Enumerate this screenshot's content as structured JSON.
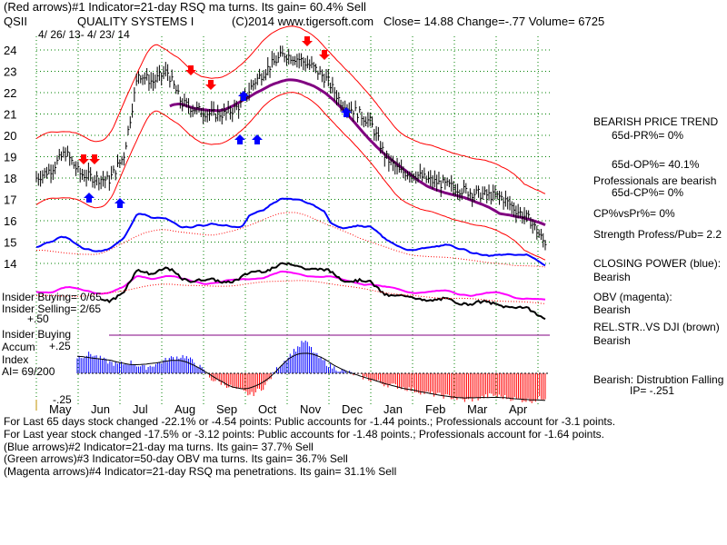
{
  "header": {
    "line1": "(Red arrows)#1 Indicator=21-day RSQ ma turns.  Its gain= 60.4% Sell",
    "ticker": "QSII",
    "company": "QUALITY SYSTEMS I",
    "copyright": "(C)2014 www.tigersoft.com",
    "quote": "Close=  14.88  Change=-.77 Volume= 6725",
    "date_range": "4/ 26/ 13-  4/ 23/ 14"
  },
  "right_panel": {
    "l1": "BEARISH PRICE TREND",
    "l2": "65d-PR%= 0%",
    "l3": "65d-OP%= 40.1%",
    "l4": "Professionals are bearish",
    "l5": "65d-CP%= 0%",
    "l6": "CP%vsPr%=  0%",
    "l7": "Strength Profess/Pub= 2.2",
    "l8": "CLOSING POWER (blue):",
    "l9": "Bearish",
    "l10": "OBV (magenta):",
    "l11": "Bearish",
    "l12": "REL.STR..VS DJI (brown)",
    "l13": "Bearish",
    "l14": "Bearish:  Distrubtion Falling",
    "l15": "IP= -.251"
  },
  "left_panel": {
    "insider_buying": "Insider Buying= 0/65",
    "insider_selling": "Insider Selling= 2/65",
    "plus50": "+.50",
    "insider_buying2": "Insider Buying",
    "accum": "Accum",
    "plus25": "+.25",
    "index": "Index",
    "ai": "AI= 69/200",
    "minus25": "-.25"
  },
  "footer": {
    "f1": "For Last 65 days stock changed -22.1% or -4.54 points:  Public accounts for -1.44 points.;  Professionals account for -3.1 points.",
    "f2": "For Last year stock changed -17.5% or -3.12 points:  Public accounts for -1.48 points.;  Professionals account for -1.64 points.",
    "f3": "(Blue arrows)#2 Indicator=21-day ma turns.  Its gain= 37.7% Sell",
    "f4": "(Green arrows)#3 Indicator=50-day OBV ma turns.  Its gain= 36.7% Sell",
    "f5": "(Magenta arrows)#4 Indicator=21-day RSQ ma penetrations.  Its gain= 31.1% Sell"
  },
  "colors": {
    "price": "#000000",
    "band": "#ff0000",
    "ma": "#800080",
    "closing_power": "#0000ff",
    "obv": "#ff00ff",
    "rel_str": "#000000",
    "accum_pos": "#0000ff",
    "accum_neg": "#ff0000",
    "grid": "#008000",
    "buy_arrow": "#0000ff",
    "sell_arrow": "#ff0000"
  },
  "chart_data": {
    "type": "line",
    "title": "QUALITY SYSTEMS I",
    "ylim": [
      13.5,
      24.5
    ],
    "y_ticks": [
      24,
      23,
      22,
      21,
      20,
      19,
      18,
      17,
      16,
      15,
      14
    ],
    "x_ticks": [
      "May",
      "Jun",
      "Jul",
      "Aug",
      "Sep",
      "Oct",
      "Nov",
      "Dec",
      "Jan",
      "Feb",
      "Mar",
      "Apr"
    ],
    "grid": true,
    "price_series": {
      "name": "",
      "x": [
        "May",
        "May",
        "May",
        "Jun",
        "Jun",
        "Jun",
        "Jul",
        "Jul",
        "Jul",
        "Aug",
        "Aug",
        "Aug",
        "Sep",
        "Sep",
        "Sep",
        "Oct",
        "Oct",
        "Oct",
        "Nov",
        "Nov",
        "Nov",
        "Dec",
        "Dec",
        "Dec",
        "Jan",
        "Jan",
        "Jan",
        "Feb",
        "Feb",
        "Feb",
        "Mar",
        "Mar",
        "Mar",
        "Apr",
        "Apr",
        "Apr"
      ],
      "values": [
        18.0,
        18.4,
        19.2,
        18.2,
        18.0,
        17.9,
        19.0,
        22.9,
        22.5,
        23.0,
        21.5,
        21.2,
        21.0,
        21.0,
        21.4,
        22.5,
        23.2,
        23.8,
        23.6,
        23.2,
        22.6,
        21.5,
        21.1,
        20.6,
        19.0,
        18.3,
        18.2,
        17.9,
        17.7,
        17.5,
        17.3,
        17.2,
        17.1,
        16.5,
        16.0,
        14.88
      ]
    },
    "annotations": {
      "sell_arrows": [
        "Jun",
        "Jun",
        "Aug",
        "Aug",
        "Oct",
        "Nov"
      ],
      "buy_arrows": [
        "Jun",
        "Jun",
        "Aug",
        "Sep",
        "Sep",
        "Nov"
      ]
    },
    "accum_index": {
      "ylim": [
        -0.25,
        0.5
      ],
      "values": [
        0.15,
        0.18,
        0.12,
        0.08,
        0.1,
        0.05,
        0.09,
        0.14,
        0.16,
        0.08,
        -0.05,
        -0.1,
        -0.15,
        -0.2,
        -0.12,
        0.05,
        0.18,
        0.3,
        0.15,
        0.06,
        0.02,
        -0.02,
        -0.06,
        -0.1,
        -0.12,
        -0.15,
        -0.18,
        -0.2,
        -0.22,
        -0.25,
        -0.23,
        -0.2,
        -0.22,
        -0.24,
        -0.25,
        -0.22
      ]
    }
  }
}
